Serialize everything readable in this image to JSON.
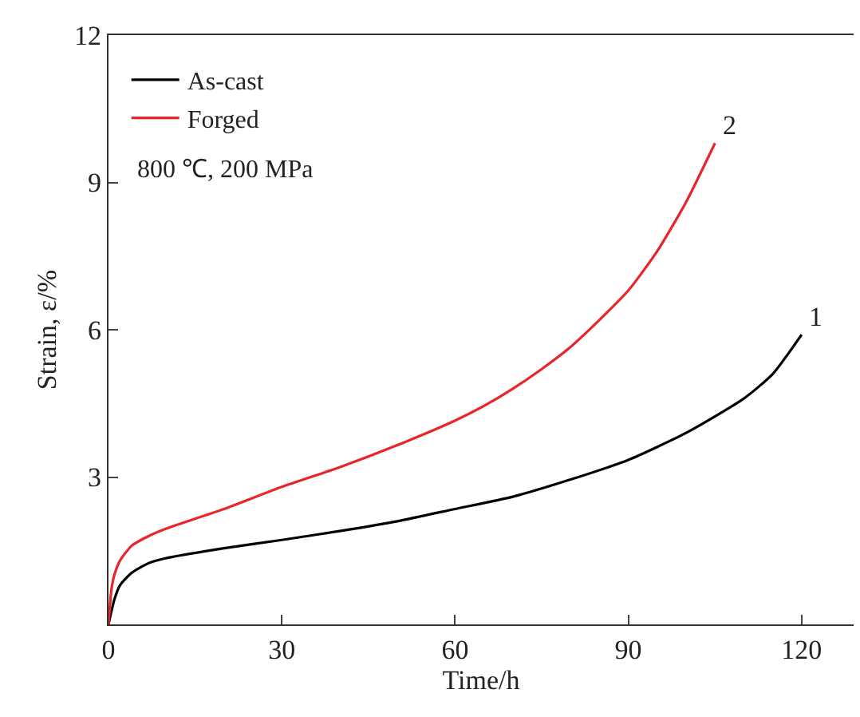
{
  "chart_data": {
    "type": "line",
    "xlabel": "Time/h",
    "ylabel": "Strain, ε/%",
    "xlim": [
      0,
      129
    ],
    "ylim": [
      0,
      12
    ],
    "xticks": [
      0,
      30,
      60,
      90,
      120
    ],
    "yticks": [
      {
        "value": 0,
        "label": null
      },
      3,
      6,
      9,
      12
    ],
    "legend": "top left",
    "marker": "none",
    "line_style": "solid",
    "series": [
      {
        "name": "As-cast",
        "color": "#000000",
        "x": [
          0,
          1,
          2,
          4,
          7,
          10,
          20,
          30,
          40,
          50,
          60,
          70,
          80,
          90,
          100,
          110,
          115,
          120
        ],
        "values": [
          0,
          0.5,
          0.8,
          1.05,
          1.25,
          1.35,
          1.55,
          1.72,
          1.9,
          2.1,
          2.35,
          2.6,
          2.95,
          3.35,
          3.9,
          4.6,
          5.1,
          5.9
        ]
      },
      {
        "name": "Forged",
        "color": "#e8262a",
        "x": [
          0,
          0.5,
          1,
          2,
          4,
          7,
          10,
          20,
          30,
          40,
          50,
          60,
          65,
          70,
          75,
          80,
          85,
          90,
          95,
          100,
          105
        ],
        "values": [
          0,
          0.7,
          1.0,
          1.3,
          1.6,
          1.8,
          1.95,
          2.35,
          2.8,
          3.2,
          3.65,
          4.15,
          4.45,
          4.8,
          5.2,
          5.65,
          6.2,
          6.8,
          7.6,
          8.6,
          9.8
        ]
      }
    ],
    "annotations": [
      {
        "text": "1",
        "x": 120,
        "y": 5.9
      },
      {
        "text": "2",
        "x": 105,
        "y": 9.8
      },
      "800 ℃, 200 MPa"
    ]
  }
}
